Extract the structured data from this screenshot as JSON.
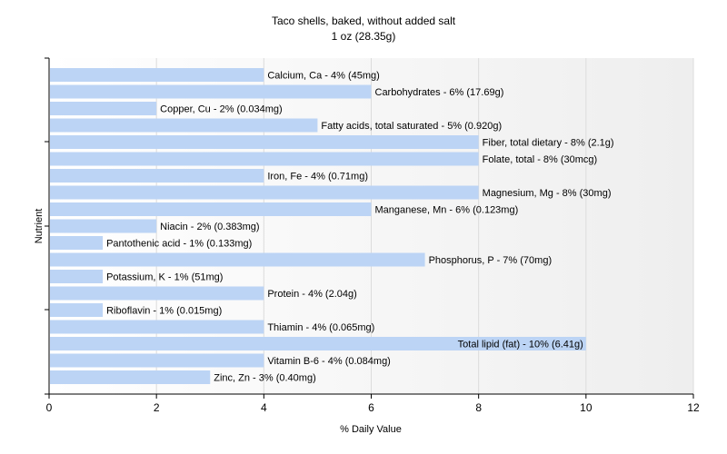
{
  "chart_data": {
    "type": "bar",
    "orientation": "horizontal",
    "title": "Taco shells, baked, without added salt",
    "subtitle": "1 oz (28.35g)",
    "xlabel": "% Daily Value",
    "ylabel": "Nutrient",
    "xlim": [
      0,
      12
    ],
    "xticks": [
      "0",
      "2",
      "4",
      "6",
      "8",
      "10",
      "12"
    ],
    "grid": true,
    "bar_color": "#bcd4f5",
    "categories": [
      "Calcium, Ca",
      "Carbohydrates",
      "Copper, Cu",
      "Fatty acids, total saturated",
      "Fiber, total dietary",
      "Folate, total",
      "Iron, Fe",
      "Magnesium, Mg",
      "Manganese, Mn",
      "Niacin",
      "Pantothenic acid",
      "Phosphorus, P",
      "Potassium, K",
      "Protein",
      "Riboflavin",
      "Thiamin",
      "Total lipid (fat)",
      "Vitamin B-6",
      "Zinc, Zn"
    ],
    "values": [
      4,
      6,
      2,
      5,
      8,
      8,
      4,
      8,
      6,
      2,
      1,
      7,
      1,
      4,
      1,
      4,
      10,
      4,
      3
    ],
    "labels": [
      "Calcium, Ca - 4% (45mg)",
      "Carbohydrates - 6% (17.69g)",
      "Copper, Cu - 2% (0.034mg)",
      "Fatty acids, total saturated - 5% (0.920g)",
      "Fiber, total dietary - 8% (2.1g)",
      "Folate, total - 8% (30mcg)",
      "Iron, Fe - 4% (0.71mg)",
      "Magnesium, Mg - 8% (30mg)",
      "Manganese, Mn - 6% (0.123mg)",
      "Niacin - 2% (0.383mg)",
      "Pantothenic acid - 1% (0.133mg)",
      "Phosphorus, P - 7% (70mg)",
      "Potassium, K - 1% (51mg)",
      "Protein - 4% (2.04g)",
      "Riboflavin - 1% (0.015mg)",
      "Thiamin - 4% (0.065mg)",
      "Total lipid (fat) - 10% (6.41g)",
      "Vitamin B-6 - 4% (0.084mg)",
      "Zinc, Zn - 3% (0.40mg)"
    ]
  }
}
